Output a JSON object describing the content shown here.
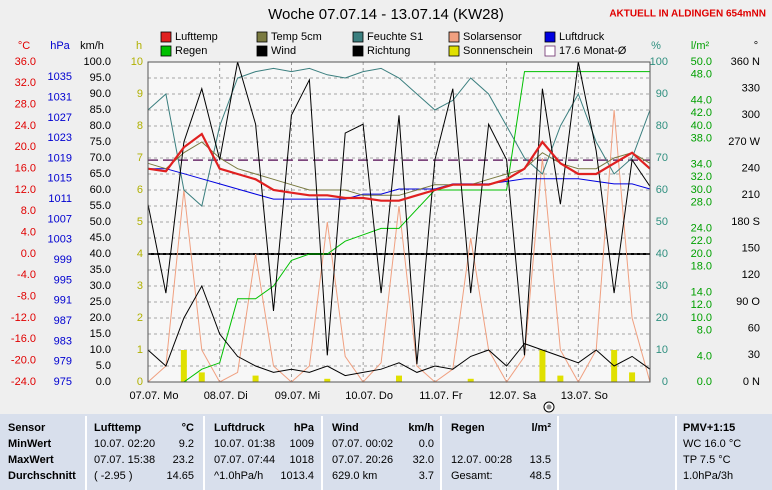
{
  "chart_data": {
    "type": "weather",
    "title": "Woche 07.07.14 - 13.07.14 (KW28)",
    "subtitle": "AKTUELL IN ALDINGEN 654mNN",
    "x": [
      0,
      6,
      12,
      18,
      24,
      30,
      36,
      42,
      48,
      54,
      60,
      66,
      72,
      78,
      84,
      90,
      96,
      102,
      108,
      114,
      120,
      126,
      132,
      138,
      144,
      150,
      156,
      162,
      168
    ],
    "xlim": [
      0,
      168
    ],
    "xticks": [
      {
        "value": 0,
        "label": "07.07. Mo"
      },
      {
        "value": 24,
        "label": "08.07. Di"
      },
      {
        "value": 48,
        "label": "09.07. Mi"
      },
      {
        "value": 72,
        "label": "10.07. Do"
      },
      {
        "value": 96,
        "label": "11.07. Fr"
      },
      {
        "value": 120,
        "label": "12.07. Sa"
      },
      {
        "value": 144,
        "label": "13.07. So"
      }
    ],
    "grid": true,
    "axes": [
      {
        "id": "c",
        "label": "°C",
        "color": "#e00000",
        "side": "left",
        "lim": [
          -24,
          36
        ],
        "zero_line": true,
        "ticks": [
          {
            "value": 36,
            "label": "36.0"
          },
          {
            "value": 32,
            "label": "32.0"
          },
          {
            "value": 28,
            "label": "28.0"
          },
          {
            "value": 24,
            "label": "24.0"
          },
          {
            "value": 20,
            "label": "20.0"
          },
          {
            "value": 16,
            "label": "16.0"
          },
          {
            "value": 12,
            "label": "12.0"
          },
          {
            "value": 8,
            "label": "8.0"
          },
          {
            "value": 4,
            "label": "4.0"
          },
          {
            "value": 0,
            "label": "0.0"
          },
          {
            "value": -4,
            "label": "-4.0"
          },
          {
            "value": -8,
            "label": "-8.0"
          },
          {
            "value": -12,
            "label": "-12.0"
          },
          {
            "value": -16,
            "label": "-16.0"
          },
          {
            "value": -20,
            "label": "-20.0"
          },
          {
            "value": -24,
            "label": "-24.0"
          }
        ]
      },
      {
        "id": "hpa",
        "label": "hPa",
        "color": "#0000d0",
        "side": "left",
        "lim": [
          975,
          1038
        ],
        "ticks": [
          1035,
          1031,
          1027,
          1023,
          1019,
          1015,
          1011,
          1007,
          1003,
          999,
          995,
          991,
          987,
          983,
          979,
          975
        ]
      },
      {
        "id": "kmh",
        "label": "km/h",
        "color": "#000000",
        "side": "left",
        "lim": [
          0,
          100
        ],
        "grid": true,
        "ticks": [
          {
            "value": 100,
            "label": "100.0"
          },
          {
            "value": 95,
            "label": "95.0"
          },
          {
            "value": 90,
            "label": "90.0"
          },
          {
            "value": 85,
            "label": "85.0"
          },
          {
            "value": 80,
            "label": "80.0"
          },
          {
            "value": 75,
            "label": "75.0"
          },
          {
            "value": 70,
            "label": "70.0"
          },
          {
            "value": 65,
            "label": "65.0"
          },
          {
            "value": 60,
            "label": "60.0"
          },
          {
            "value": 55,
            "label": "55.0"
          },
          {
            "value": 50,
            "label": "50.0"
          },
          {
            "value": 45,
            "label": "45.0"
          },
          {
            "value": 40,
            "label": "40.0"
          },
          {
            "value": 35,
            "label": "35.0"
          },
          {
            "value": 30,
            "label": "30.0"
          },
          {
            "value": 25,
            "label": "25.0"
          },
          {
            "value": 20,
            "label": "20.0"
          },
          {
            "value": 15,
            "label": "15.0"
          },
          {
            "value": 10,
            "label": "10.0"
          },
          {
            "value": 5,
            "label": "5.0"
          },
          {
            "value": 0,
            "label": "0.0"
          }
        ]
      },
      {
        "id": "h",
        "label": "h",
        "color": "#b0b000",
        "side": "left",
        "lim": [
          0,
          10
        ],
        "ticks": [
          10,
          9,
          8,
          7,
          6,
          5,
          4,
          3,
          2,
          1,
          0
        ]
      },
      {
        "id": "pct",
        "label": "%",
        "color": "#2f8f7f",
        "side": "right",
        "lim": [
          0,
          100
        ],
        "ticks": [
          100,
          90,
          80,
          70,
          60,
          50,
          40,
          30,
          20,
          10,
          0
        ]
      },
      {
        "id": "lm2",
        "label": "l/m²",
        "color": "#00a000",
        "side": "right",
        "lim": [
          0,
          50
        ],
        "ticks": [
          {
            "value": 50,
            "label": "50.0"
          },
          {
            "value": 48,
            "label": "48.0"
          },
          {
            "value": 44,
            "label": "44.0"
          },
          {
            "value": 42,
            "label": "42.0"
          },
          {
            "value": 40,
            "label": "40.0"
          },
          {
            "value": 38,
            "label": "38.0"
          },
          {
            "value": 34,
            "label": "34.0"
          },
          {
            "value": 32,
            "label": "32.0"
          },
          {
            "value": 30,
            "label": "30.0"
          },
          {
            "value": 28,
            "label": "28.0"
          },
          {
            "value": 24,
            "label": "24.0"
          },
          {
            "value": 22,
            "label": "22.0"
          },
          {
            "value": 20,
            "label": "20.0"
          },
          {
            "value": 18,
            "label": "18.0"
          },
          {
            "value": 14,
            "label": "14.0"
          },
          {
            "value": 12,
            "label": "12.0"
          },
          {
            "value": 10,
            "label": "10.0"
          },
          {
            "value": 8,
            "label": "8.0"
          },
          {
            "value": 4,
            "label": "4.0"
          },
          {
            "value": 0,
            "label": "0.0"
          }
        ]
      },
      {
        "id": "dir",
        "label": "°",
        "color": "#000000",
        "side": "right",
        "lim": [
          0,
          360
        ],
        "ticks": [
          {
            "value": 360,
            "label": "360 N"
          },
          330,
          300,
          {
            "value": 270,
            "label": "270 W"
          },
          240,
          210,
          {
            "value": 180,
            "label": "180 S"
          },
          150,
          120,
          {
            "value": 90,
            "label": "90 O"
          },
          60,
          30,
          {
            "value": 0,
            "label": "0 N"
          }
        ]
      }
    ],
    "series": [
      {
        "name": "Lufttemp",
        "color": "#e02020",
        "axis": "c",
        "style": "line",
        "width": 2.2,
        "values": [
          16,
          15.5,
          20,
          22.5,
          16,
          15,
          14,
          12,
          11.5,
          11,
          11,
          10.5,
          10.5,
          10,
          10,
          11,
          12,
          13,
          13,
          13,
          14,
          16,
          21,
          17,
          15,
          15,
          17,
          19,
          16
        ]
      },
      {
        "name": "Temp 5cm",
        "color": "#7a7a40",
        "axis": "c",
        "style": "line",
        "width": 1,
        "values": [
          17,
          16,
          19,
          21,
          18,
          16,
          15,
          14,
          13,
          12,
          12,
          12,
          11,
          11,
          11,
          12,
          13,
          13,
          13,
          14,
          15,
          16,
          19,
          17,
          16,
          16,
          18,
          19,
          17
        ]
      },
      {
        "name": "Feuchte S1",
        "color": "#3b7f7f",
        "axis": "pct",
        "style": "line",
        "width": 1,
        "values": [
          85,
          90,
          60,
          55,
          80,
          95,
          97,
          98,
          97,
          98,
          96,
          95,
          97,
          98,
          95,
          90,
          85,
          88,
          95,
          90,
          80,
          70,
          65,
          80,
          90,
          75,
          65,
          70,
          85
        ]
      },
      {
        "name": "Solarsensor",
        "color": "#f0a080",
        "axis": "pct",
        "style": "line",
        "width": 1,
        "values": [
          0,
          5,
          60,
          10,
          0,
          3,
          40,
          5,
          0,
          5,
          50,
          8,
          0,
          6,
          55,
          5,
          0,
          4,
          45,
          10,
          0,
          8,
          70,
          10,
          0,
          10,
          85,
          20,
          0
        ]
      },
      {
        "name": "Luftdruck",
        "color": "#0000e0",
        "axis": "hpa",
        "style": "line",
        "width": 1,
        "values": [
          1017,
          1017,
          1016,
          1015,
          1014,
          1013,
          1012,
          1011,
          1011,
          1011,
          1011,
          1011,
          1012,
          1012,
          1013,
          1013,
          1013,
          1014,
          1014,
          1014,
          1014.5,
          1015,
          1015,
          1015,
          1015,
          1014.5,
          1014,
          1014,
          1013
        ]
      },
      {
        "name": "Regen",
        "color": "#00c000",
        "axis": "lm2",
        "style": "line",
        "width": 1,
        "values": [
          0,
          0,
          0,
          2,
          3,
          13,
          13,
          15,
          19,
          20,
          20,
          22,
          23,
          24,
          24,
          27,
          30,
          30,
          30,
          30,
          30,
          48.5,
          48.5,
          48.5,
          48.5,
          48.5,
          48.5,
          48.5,
          48.5
        ]
      },
      {
        "name": "Wind",
        "color": "#000000",
        "axis": "kmh",
        "style": "line",
        "width": 1,
        "values": [
          10,
          5,
          20,
          30,
          15,
          8,
          5,
          3,
          4,
          3,
          5,
          2,
          3,
          4,
          6,
          3,
          5,
          4,
          8,
          10,
          5,
          12,
          10,
          8,
          6,
          10,
          5,
          8,
          4
        ]
      },
      {
        "name": "Richtung",
        "color": "#000000",
        "axis": "dir",
        "style": "line",
        "width": 1,
        "values": [
          200,
          100,
          270,
          330,
          250,
          360,
          290,
          80,
          300,
          340,
          30,
          280,
          290,
          100,
          300,
          20,
          250,
          330,
          100,
          290,
          250,
          30,
          330,
          200,
          360,
          260,
          100,
          250,
          220
        ]
      },
      {
        "name": "Sonnenschein",
        "color": "#e0e000",
        "axis": "h",
        "style": "bar",
        "width": 6,
        "values": [
          0,
          0,
          1,
          0.3,
          0,
          0,
          0.2,
          0,
          0,
          0,
          0.1,
          0,
          0,
          0,
          0.2,
          0,
          0,
          0,
          0.1,
          0,
          0,
          0,
          1,
          0.2,
          0,
          0,
          1,
          0.3,
          0
        ]
      }
    ],
    "monthly_avg": {
      "name": "17.6 Monat-Ø",
      "value": 17.6,
      "axis": "c",
      "color": "#6b2c6b"
    }
  },
  "table": {
    "header": [
      "Sensor",
      [
        "Lufttemp",
        "°C"
      ],
      [
        "Luftdruck",
        "hPa"
      ],
      [
        "Wind",
        "km/h"
      ],
      [
        "Regen",
        "l/m²"
      ],
      "PMV+1:15"
    ],
    "rows": [
      {
        "label": "MinWert",
        "cells": [
          [
            "10.07.  02:20",
            "9.2"
          ],
          [
            "10.07.  01:38",
            "1009"
          ],
          [
            "07.07.  00:02",
            "0.0"
          ],
          null
        ],
        "extra": "WC 16.0 °C"
      },
      {
        "label": "MaxWert",
        "cells": [
          [
            "07.07.  15:38",
            "23.2"
          ],
          [
            "07.07.  07:44",
            "1018"
          ],
          [
            "07.07.  20:26",
            "32.0"
          ],
          [
            "12.07.  00:28",
            "13.5"
          ]
        ],
        "extra": "TP 7.5 °C"
      },
      {
        "label": "Durchschnitt",
        "cells": [
          [
            "( -2.95 )",
            "14.65"
          ],
          [
            "^1.0hPa/h",
            "1013.4"
          ],
          [
            "629.0 km",
            "3.7"
          ],
          [
            "Gesamt:",
            "48.5"
          ]
        ],
        "extra": "1.0hPa/3h"
      }
    ]
  }
}
